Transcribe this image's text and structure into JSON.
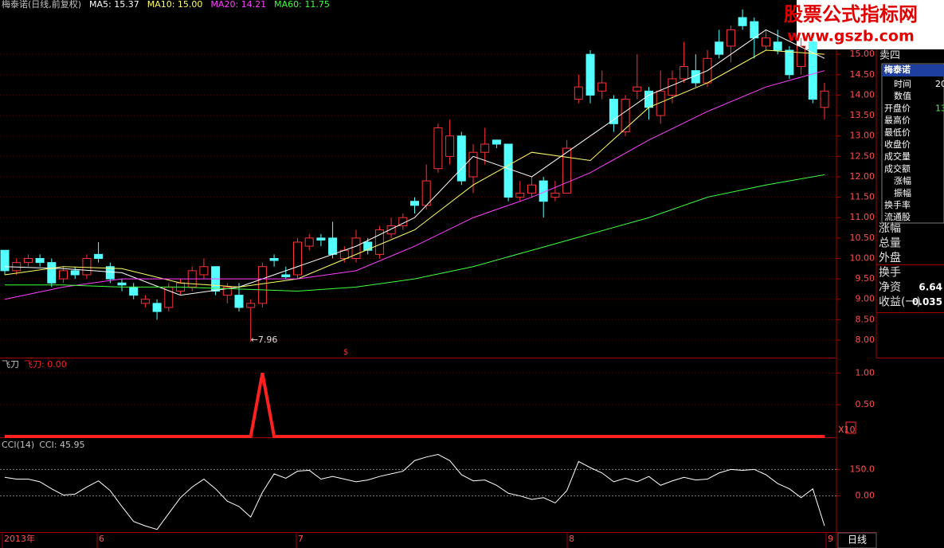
{
  "chart_data": [
    {
      "type": "candlestick",
      "title": "梅泰诺(日线,前复权)",
      "open": [
        10.2,
        9.7,
        9.9,
        10.0,
        9.9,
        9.5,
        9.7,
        9.6,
        10.1,
        9.8,
        9.4,
        9.3,
        8.9,
        8.9,
        8.8,
        9.2,
        9.3,
        9.6,
        9.8,
        9.1,
        9.1,
        8.8,
        8.9,
        10.0,
        9.6,
        9.6,
        10.3,
        10.5,
        10.5,
        10.0,
        10.0,
        10.4,
        10.1,
        10.6,
        10.8,
        11.4,
        11.3,
        12.2,
        12.5,
        13.0,
        12.0,
        12.6,
        12.9,
        12.8,
        11.5,
        11.6,
        11.9,
        11.5,
        11.6,
        13.9,
        15.0,
        14.1,
        13.9,
        13.1,
        14.1,
        14.1,
        13.5,
        14.0,
        14.4,
        14.6,
        14.3,
        15.3,
        15.2,
        15.9,
        15.8,
        15.2,
        15.3,
        15.1,
        14.7,
        15.3,
        13.7
      ],
      "high": [
        10.2,
        10.0,
        10.1,
        10.1,
        10.0,
        9.8,
        9.8,
        10.1,
        10.4,
        9.9,
        9.5,
        9.4,
        9.1,
        9.0,
        9.4,
        9.5,
        9.8,
        10.0,
        9.8,
        9.4,
        9.4,
        9.0,
        9.9,
        10.1,
        9.8,
        10.5,
        10.6,
        10.6,
        10.9,
        10.3,
        10.7,
        10.5,
        10.8,
        11.0,
        11.1,
        11.5,
        12.3,
        13.3,
        13.4,
        13.1,
        12.8,
        13.2,
        12.9,
        12.8,
        11.9,
        12.0,
        12.0,
        11.9,
        12.9,
        14.5,
        15.1,
        14.6,
        14.0,
        14.0,
        15.0,
        14.2,
        14.6,
        14.6,
        15.3,
        15.0,
        15.1,
        15.6,
        15.7,
        16.1,
        15.9,
        15.6,
        15.6,
        15.2,
        15.4,
        15.4,
        14.3
      ],
      "low": [
        9.6,
        9.6,
        9.8,
        9.8,
        9.3,
        9.4,
        9.5,
        9.5,
        9.9,
        9.4,
        9.2,
        9.0,
        8.8,
        8.5,
        8.7,
        9.1,
        9.2,
        9.5,
        9.1,
        8.9,
        8.7,
        7.96,
        8.8,
        9.8,
        9.5,
        9.5,
        10.2,
        10.3,
        10.0,
        9.9,
        9.9,
        10.1,
        10.0,
        10.5,
        10.7,
        11.1,
        11.2,
        12.1,
        12.3,
        11.8,
        11.6,
        12.3,
        12.7,
        11.4,
        11.4,
        11.5,
        11.0,
        11.4,
        11.6,
        13.8,
        13.8,
        13.9,
        13.1,
        13.0,
        13.9,
        13.4,
        13.3,
        13.8,
        14.3,
        14.2,
        14.2,
        14.9,
        14.8,
        15.6,
        14.9,
        15.1,
        15.0,
        14.4,
        14.5,
        13.8,
        13.4
      ],
      "close": [
        9.7,
        9.9,
        10.0,
        9.9,
        9.4,
        9.7,
        9.6,
        10.0,
        10.0,
        9.5,
        9.35,
        9.1,
        9.0,
        8.7,
        9.3,
        9.4,
        9.7,
        9.8,
        9.2,
        9.3,
        8.8,
        8.9,
        9.8,
        9.95,
        9.55,
        10.4,
        10.5,
        10.45,
        10.1,
        10.2,
        10.5,
        10.2,
        10.7,
        10.8,
        11.0,
        11.3,
        11.9,
        13.2,
        13.0,
        11.9,
        12.6,
        12.8,
        12.8,
        11.5,
        11.6,
        11.8,
        11.4,
        11.6,
        12.7,
        14.2,
        14.0,
        14.3,
        13.3,
        13.9,
        14.2,
        13.7,
        14.1,
        14.4,
        14.7,
        14.3,
        14.9,
        15.0,
        15.6,
        15.7,
        15.4,
        15.4,
        15.1,
        14.5,
        15.2,
        13.9,
        14.1
      ],
      "up_color": "#ff3232",
      "down_color": "#54ffff",
      "ma_x": [
        0,
        5,
        10,
        15,
        20,
        25,
        30,
        35,
        40,
        45,
        50,
        55,
        60,
        65,
        70
      ],
      "series": [
        {
          "name": "MA5: 15.37",
          "color": "#ffffff",
          "values": [
            9.8,
            9.75,
            9.65,
            9.1,
            9.3,
            9.8,
            10.3,
            11.0,
            12.5,
            12.0,
            13.0,
            14.0,
            14.6,
            15.6,
            14.9
          ]
        },
        {
          "name": "MA10: 15.00",
          "color": "#ffff66",
          "values": [
            9.6,
            9.8,
            9.75,
            9.4,
            9.3,
            9.5,
            10.1,
            10.7,
            11.8,
            12.6,
            12.4,
            13.7,
            14.3,
            15.1,
            15.0
          ]
        },
        {
          "name": "MA20: 14.21",
          "color": "#ff40ff",
          "values": [
            9.0,
            9.3,
            9.5,
            9.5,
            9.5,
            9.5,
            9.7,
            10.3,
            11.0,
            11.5,
            12.1,
            12.9,
            13.6,
            14.2,
            14.6
          ]
        },
        {
          "name": "MA60: 11.75",
          "color": "#40ff40",
          "values": [
            9.35,
            9.35,
            9.3,
            9.3,
            9.25,
            9.2,
            9.3,
            9.5,
            9.8,
            10.2,
            10.6,
            11.0,
            11.5,
            11.8,
            12.05
          ]
        }
      ],
      "annotation": "←7.96",
      "marker": "$",
      "ylim": [
        7.61,
        16.33
      ],
      "yticks": [
        {
          "value": 8,
          "label": "8.00"
        },
        {
          "value": 8.5,
          "label": "8.50"
        },
        {
          "value": 9,
          "label": "9.00"
        },
        {
          "value": 9.5,
          "label": "9.50"
        },
        {
          "value": 10,
          "label": "10.00"
        },
        {
          "value": 10.5,
          "label": "10.50"
        },
        {
          "value": 11,
          "label": "11.00"
        },
        {
          "value": 11.5,
          "label": "11.50"
        },
        {
          "value": 12,
          "label": "12.00"
        },
        {
          "value": 12.5,
          "label": "12.50"
        },
        {
          "value": 13,
          "label": "13.00"
        },
        {
          "value": 13.5,
          "label": "13.50"
        },
        {
          "value": 14,
          "label": "14.00"
        },
        {
          "value": 14.5,
          "label": "14.50"
        },
        {
          "value": 15,
          "label": "15.00"
        }
      ]
    },
    {
      "type": "line",
      "title": "飞刀",
      "name": "飞刀: 0.00",
      "color": "#ff2020",
      "scale_note": "X10",
      "values": [
        0,
        0,
        0,
        0,
        0,
        0,
        0,
        0,
        0,
        0,
        0,
        0,
        0,
        0,
        0,
        0,
        0,
        0,
        0,
        0,
        0,
        0,
        1,
        0,
        0,
        0,
        0,
        0,
        0,
        0,
        0,
        0,
        0,
        0,
        0,
        0,
        0,
        0,
        0,
        0,
        0,
        0,
        0,
        0,
        0,
        0,
        0,
        0,
        0,
        0,
        0,
        0,
        0,
        0,
        0,
        0,
        0,
        0,
        0,
        0,
        0,
        0,
        0,
        0,
        0,
        0,
        0,
        0,
        0,
        0,
        0
      ],
      "ylim": [
        0,
        1.23
      ],
      "yticks": [
        {
          "value": 0.5,
          "label": "0.50"
        },
        {
          "value": 1,
          "label": "1.00"
        }
      ]
    },
    {
      "type": "line",
      "title": "CCI(14)",
      "name": "CCI: 45.95",
      "color": "#ffffff",
      "values": [
        105,
        95,
        95,
        80,
        40,
        5,
        10,
        50,
        85,
        30,
        -60,
        -145,
        -170,
        -190,
        -100,
        -10,
        50,
        95,
        40,
        -30,
        -60,
        -120,
        20,
        125,
        100,
        140,
        145,
        95,
        110,
        95,
        80,
        90,
        110,
        125,
        140,
        200,
        220,
        235,
        200,
        120,
        85,
        90,
        60,
        15,
        0,
        -20,
        -10,
        -40,
        30,
        195,
        160,
        130,
        80,
        100,
        80,
        110,
        60,
        85,
        105,
        90,
        95,
        130,
        150,
        145,
        150,
        120,
        70,
        40,
        -10,
        40,
        -170
      ],
      "ylim": [
        -205,
        323
      ],
      "yticks": [
        {
          "value": 0,
          "label": "0.00"
        },
        {
          "value": 150,
          "label": "150.0"
        }
      ]
    }
  ],
  "x_labels": [
    "2013年",
    "6",
    "7",
    "8",
    "9"
  ],
  "period_button": "日线",
  "right_panel": {
    "top": "卖四",
    "box_title": "梅泰诺",
    "fields": [
      {
        "label": "时间",
        "value": "20"
      },
      {
        "label": "数值"
      },
      {
        "label": "开盘价",
        "value": "13"
      },
      {
        "label": "最高价"
      },
      {
        "label": "最低价"
      },
      {
        "label": "收盘价"
      },
      {
        "label": "成交量"
      },
      {
        "label": "成交额"
      },
      {
        "label": "涨幅"
      },
      {
        "label": "振幅"
      },
      {
        "label": "换手率"
      },
      {
        "label": "流通股"
      }
    ],
    "rows": [
      {
        "label": "涨幅"
      },
      {
        "label": "总量"
      },
      {
        "label": "外盘"
      },
      {
        "label": "换手"
      },
      {
        "label": "净资",
        "value": "6.64"
      },
      {
        "label": "收益(一)",
        "value": "0.035"
      }
    ]
  },
  "watermark": {
    "title": "股票公式指标网",
    "url": "www.gszb.com"
  }
}
